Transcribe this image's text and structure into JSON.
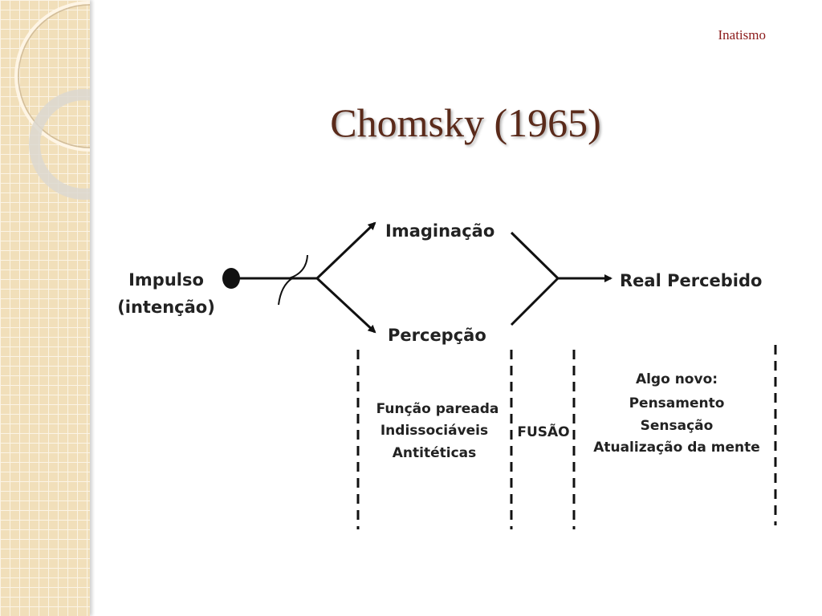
{
  "slide": {
    "header": "Inatismo",
    "title": "Chomsky (1965)"
  },
  "diagram": {
    "source": {
      "line1": "Impulso",
      "line2": "(intenção)"
    },
    "branch_top": "Imaginação",
    "branch_bottom": "Percepção",
    "result": "Real Percebido",
    "columns": {
      "paired": [
        "Função pareada",
        "Indissociáveis",
        "Antitéticas"
      ],
      "fusion": "FUSÃO",
      "new": [
        "Algo novo:",
        "Pensamento",
        "Sensação",
        "Atualização da mente"
      ]
    }
  }
}
